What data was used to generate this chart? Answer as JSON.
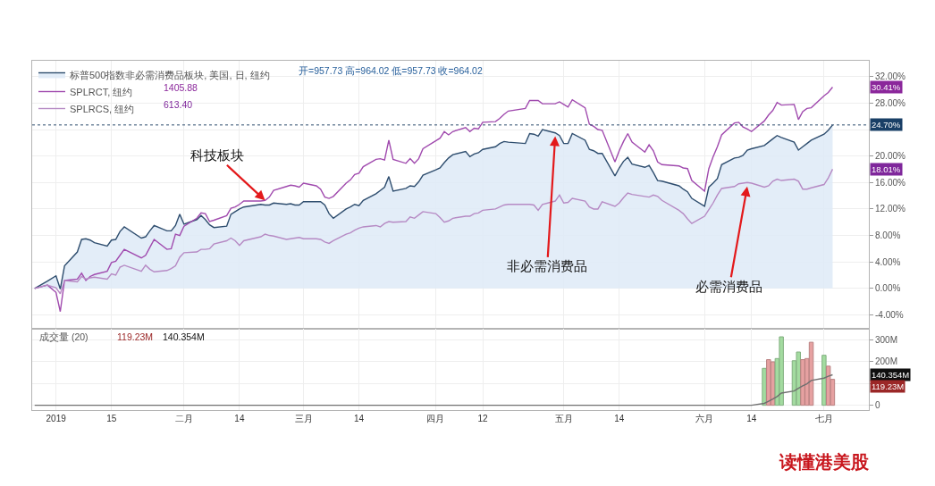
{
  "chart_data": [
    {
      "type": "line",
      "x": [
        "2018-12-28",
        "2018-12-31",
        "2019-01-02",
        "2019-01-03",
        "2019-01-04",
        "2019-01-07",
        "2019-01-08",
        "2019-01-09",
        "2019-01-10",
        "2019-01-11",
        "2019-01-14",
        "2019-01-15",
        "2019-01-16",
        "2019-01-17",
        "2019-01-18",
        "2019-01-22",
        "2019-01-23",
        "2019-01-24",
        "2019-01-25",
        "2019-01-28",
        "2019-01-29",
        "2019-01-30",
        "2019-01-31",
        "2019-02-01",
        "2019-02-04",
        "2019-02-05",
        "2019-02-06",
        "2019-02-07",
        "2019-02-08",
        "2019-02-11",
        "2019-02-12",
        "2019-02-13",
        "2019-02-14",
        "2019-02-15",
        "2019-02-19",
        "2019-02-20",
        "2019-02-21",
        "2019-02-22",
        "2019-02-25",
        "2019-02-26",
        "2019-02-27",
        "2019-02-28",
        "2019-03-01",
        "2019-03-04",
        "2019-03-05",
        "2019-03-06",
        "2019-03-07",
        "2019-03-08",
        "2019-03-11",
        "2019-03-12",
        "2019-03-13",
        "2019-03-14",
        "2019-03-15",
        "2019-03-18",
        "2019-03-19",
        "2019-03-20",
        "2019-03-21",
        "2019-03-22",
        "2019-03-25",
        "2019-03-26",
        "2019-03-27",
        "2019-03-28",
        "2019-03-29",
        "2019-04-01",
        "2019-04-02",
        "2019-04-03",
        "2019-04-04",
        "2019-04-05",
        "2019-04-08",
        "2019-04-09",
        "2019-04-10",
        "2019-04-11",
        "2019-04-12",
        "2019-04-15",
        "2019-04-16",
        "2019-04-17",
        "2019-04-18",
        "2019-04-22",
        "2019-04-23",
        "2019-04-24",
        "2019-04-25",
        "2019-04-26",
        "2019-04-29",
        "2019-04-30",
        "2019-05-01",
        "2019-05-02",
        "2019-05-03",
        "2019-05-06",
        "2019-05-07",
        "2019-05-08",
        "2019-05-09",
        "2019-05-10",
        "2019-05-13",
        "2019-05-14",
        "2019-05-15",
        "2019-05-16",
        "2019-05-17",
        "2019-05-20",
        "2019-05-21",
        "2019-05-22",
        "2019-05-23",
        "2019-05-24",
        "2019-05-28",
        "2019-05-29",
        "2019-05-30",
        "2019-05-31",
        "2019-06-03",
        "2019-06-04",
        "2019-06-05",
        "2019-06-06",
        "2019-06-07",
        "2019-06-10",
        "2019-06-11",
        "2019-06-12",
        "2019-06-13",
        "2019-06-14",
        "2019-06-17",
        "2019-06-18",
        "2019-06-19",
        "2019-06-20",
        "2019-06-21",
        "2019-06-24",
        "2019-06-25",
        "2019-06-26",
        "2019-06-27",
        "2019-06-28",
        "2019-07-01",
        "2019-07-02",
        "2019-07-03"
      ],
      "series": [
        {
          "name": "标普500指数非必需消费品板块, 美国, 日, 纽约",
          "type": "area",
          "color": "#2e4d6e",
          "values": [
            0,
            1.1,
            1.9,
            -0.1,
            3.4,
            5.5,
            7.4,
            7.5,
            7.3,
            6.9,
            6.4,
            7.3,
            7.4,
            8.6,
            9.3,
            7.6,
            7.8,
            8.7,
            9.5,
            8.7,
            8.7,
            9.5,
            11.2,
            9.7,
            10.4,
            11.0,
            10.4,
            9.6,
            9.2,
            9.4,
            11.2,
            11.6,
            12.0,
            12.3,
            12.7,
            12.6,
            12.6,
            12.9,
            12.7,
            12.8,
            12.6,
            12.6,
            13.1,
            13.1,
            13.1,
            12.6,
            11.3,
            10.6,
            12.0,
            12.3,
            12.7,
            12.5,
            13.3,
            14.3,
            14.8,
            15.3,
            16.9,
            14.7,
            15.1,
            15.5,
            15.4,
            16.1,
            17.1,
            17.9,
            18.2,
            19.0,
            19.7,
            20.2,
            20.7,
            19.9,
            20.3,
            20.5,
            21.0,
            21.4,
            21.9,
            22.2,
            22.1,
            21.9,
            23.4,
            23.3,
            23.0,
            24.0,
            23.5,
            23.1,
            21.9,
            21.9,
            23.4,
            22.4,
            21.0,
            20.8,
            20.4,
            20.4,
            17.0,
            18.2,
            19.2,
            19.8,
            18.8,
            18.3,
            18.6,
            17.5,
            16.3,
            16.2,
            15.5,
            15.0,
            14.6,
            13.6,
            12.4,
            15.3,
            15.9,
            16.6,
            18.7,
            19.7,
            19.8,
            20.1,
            20.9,
            21.1,
            21.6,
            22.1,
            22.6,
            23.1,
            22.8,
            22.1,
            20.9,
            21.4,
            21.9,
            22.4,
            23.3,
            23.9,
            24.7
          ]
        },
        {
          "name": "SPLRCT, 纽约",
          "color": "#a04aae",
          "values": [
            0,
            0.5,
            -0.6,
            -3.5,
            1.2,
            1.4,
            2.3,
            1.2,
            1.8,
            2.1,
            2.6,
            3.9,
            4.1,
            5.0,
            5.9,
            4.6,
            5.0,
            6.2,
            7.4,
            5.9,
            6.0,
            8.2,
            8.0,
            9.4,
            10.6,
            11.4,
            11.3,
            10.1,
            10.3,
            11.0,
            12.1,
            12.3,
            12.7,
            13.2,
            13.2,
            13.3,
            13.8,
            14.8,
            15.4,
            15.6,
            15.5,
            15.3,
            15.9,
            15.5,
            15.0,
            13.8,
            13.6,
            13.9,
            15.9,
            16.4,
            17.2,
            17.4,
            18.4,
            19.5,
            19.6,
            19.4,
            22.4,
            19.5,
            18.9,
            19.6,
            18.9,
            19.6,
            21.1,
            22.3,
            22.7,
            23.7,
            23.2,
            23.7,
            24.3,
            23.7,
            24.2,
            24.1,
            25.1,
            25.2,
            25.7,
            26.3,
            26.8,
            27.2,
            28.4,
            28.4,
            28.4,
            27.9,
            27.9,
            28.2,
            27.8,
            27.4,
            28.5,
            27.3,
            24.8,
            24.5,
            24.0,
            23.9,
            19.1,
            20.8,
            22.2,
            23.4,
            22.1,
            20.6,
            21.7,
            20.8,
            19.1,
            18.7,
            18.5,
            18.2,
            18.1,
            16.3,
            14.7,
            18.1,
            19.9,
            21.4,
            23.2,
            25.0,
            25.1,
            24.4,
            24.1,
            23.7,
            25.3,
            26.2,
            26.9,
            28.1,
            27.7,
            27.8,
            25.5,
            26.7,
            27.2,
            27.3,
            29.1,
            29.6,
            30.41
          ]
        },
        {
          "name": "SPLRCS, 纽约",
          "color": "#b68ac4",
          "values": [
            0,
            0.5,
            0.1,
            -0.8,
            1.2,
            1.0,
            1.8,
            1.4,
            1.6,
            1.7,
            1.4,
            2.2,
            2.0,
            3.2,
            3.5,
            2.6,
            3.5,
            2.9,
            2.5,
            2.7,
            3.0,
            3.4,
            4.7,
            5.4,
            5.5,
            5.9,
            5.9,
            6.0,
            6.7,
            7.2,
            7.6,
            7.2,
            6.5,
            7.2,
            7.8,
            8.2,
            8.0,
            7.9,
            7.4,
            7.5,
            7.6,
            7.7,
            7.5,
            7.5,
            7.4,
            7.0,
            6.8,
            7.2,
            8.2,
            8.4,
            8.8,
            9.1,
            9.3,
            9.5,
            9.3,
            9.8,
            10.1,
            10.0,
            10.1,
            10.8,
            10.6,
            11.1,
            11.6,
            11.3,
            10.7,
            10.0,
            10.2,
            10.6,
            10.9,
            10.9,
            11.3,
            11.4,
            11.8,
            12.0,
            12.3,
            12.6,
            12.7,
            12.7,
            12.7,
            12.6,
            11.8,
            12.7,
            13.2,
            14.1,
            12.9,
            13.0,
            13.6,
            13.2,
            12.3,
            12.0,
            12.0,
            13.1,
            12.4,
            12.9,
            13.7,
            14.4,
            14.2,
            13.9,
            13.8,
            14.1,
            13.9,
            13.3,
            11.8,
            11.3,
            10.5,
            9.8,
            10.9,
            11.9,
            12.9,
            14.1,
            15.1,
            15.4,
            15.8,
            15.9,
            16.0,
            15.9,
            15.3,
            15.5,
            16.2,
            16.5,
            16.3,
            16.5,
            16.2,
            15.0,
            15.0,
            15.2,
            15.7,
            16.7,
            18.01
          ]
        }
      ],
      "xlim": [
        "2018-12-27T10:00",
        "2019-07-11T12:00"
      ],
      "xticks": [
        {
          "value": "2019-01-02",
          "label": null
        },
        {
          "value": "2019-01-15",
          "label": null
        },
        {
          "value": "2019-02-01",
          "label": null
        },
        {
          "value": "2019-02-14",
          "label": null
        },
        {
          "value": "2019-03-01",
          "label": null
        },
        {
          "value": "2019-03-14",
          "label": null
        },
        {
          "value": "2019-04-01",
          "label": null
        },
        {
          "value": "2019-04-12",
          "label": null
        },
        {
          "value": "2019-05-01",
          "label": null
        },
        {
          "value": "2019-05-14",
          "label": null
        },
        {
          "value": "2019-06-03",
          "label": null
        },
        {
          "value": "2019-06-14",
          "label": null
        },
        {
          "value": "2019-07-01",
          "label": null
        }
      ],
      "ylim": [
        -6.1,
        34.4
      ],
      "yticks": [
        {
          "value": -4,
          "label": "-4.00%"
        },
        {
          "value": 0,
          "label": "0.00%"
        },
        {
          "value": 4,
          "label": "4.00%"
        },
        {
          "value": 8,
          "label": "8.00%"
        },
        {
          "value": 12,
          "label": "12.00%"
        },
        {
          "value": 16,
          "label": "16.00%"
        },
        {
          "value": 20,
          "label": "20.00%"
        },
        {
          "value": 24,
          "label": null
        },
        {
          "value": 28,
          "label": "28.00%"
        },
        {
          "value": 32,
          "label": "32.00%"
        }
      ],
      "grid": true,
      "legend": "top left",
      "tick_labels": "y",
      "ref_lines": [
        {
          "axis": "y",
          "value": 24.7,
          "label": "24.70%",
          "color": "#2e4d6e",
          "line_style": "dotted"
        }
      ],
      "annotations": [
        "开=957.73 高=964.02 低=957.73 收=964.02",
        "1405.88",
        "613.40",
        {
          "text": "科技板块",
          "x": "2019-02-20",
          "y": 13.3
        },
        {
          "text": "非必需消费品",
          "x": "2019-04-29",
          "y": 23.0
        },
        {
          "text": "必需消费品",
          "x": "2019-06-13",
          "y": 15.4
        },
        "30.41%",
        "18.01%",
        "读懂港美股"
      ]
    },
    {
      "type": "bar",
      "title": "成交量 (20)",
      "x": [
        "2019-06-17",
        "2019-06-18",
        "2019-06-19",
        "2019-06-20",
        "2019-06-21",
        "2019-06-24",
        "2019-06-25",
        "2019-06-26",
        "2019-06-27",
        "2019-06-28",
        "2019-07-01",
        "2019-07-02",
        "2019-07-03"
      ],
      "series": [
        {
          "values": [
            170,
            210,
            200,
            215,
            315,
            205,
            245,
            210,
            215,
            290,
            230,
            180,
            119.23
          ],
          "colors": [
            "#a3dba0",
            "#e6a1a1",
            "#e6a1a1",
            "#a3dba0",
            "#a3dba0",
            "#a3dba0",
            "#a3dba0",
            "#e6a1a1",
            "#e6a1a1",
            "#e6a1a1",
            "#a3dba0",
            "#e6a1a1",
            "#e6a1a1"
          ]
        },
        {
          "type": "line",
          "color": "#707070",
          "x": [
            "2018-12-28",
            "2019-06-14",
            "2019-06-17",
            "2019-06-18",
            "2019-06-19",
            "2019-06-20",
            "2019-06-21",
            "2019-06-24",
            "2019-06-25",
            "2019-06-26",
            "2019-06-27",
            "2019-06-28",
            "2019-07-01",
            "2019-07-02",
            "2019-07-03"
          ],
          "values": [
            0,
            0,
            9,
            19,
            29,
            40,
            56,
            66,
            78,
            89,
            99,
            114,
            125,
            134,
            140.354
          ]
        }
      ],
      "xlim": [
        "2018-12-27T10:00",
        "2019-07-11T12:00"
      ],
      "xticks": [
        {
          "value": "2019-01-02",
          "label": "2019"
        },
        {
          "value": "2019-01-15",
          "label": "15"
        },
        {
          "value": "2019-02-01",
          "label": "二月"
        },
        {
          "value": "2019-02-14",
          "label": "14"
        },
        {
          "value": "2019-03-01",
          "label": "三月"
        },
        {
          "value": "2019-03-14",
          "label": "14"
        },
        {
          "value": "2019-04-01",
          "label": "四月"
        },
        {
          "value": "2019-04-12",
          "label": "12"
        },
        {
          "value": "2019-05-01",
          "label": "五月"
        },
        {
          "value": "2019-05-14",
          "label": "14"
        },
        {
          "value": "2019-06-03",
          "label": "六月"
        },
        {
          "value": "2019-06-14",
          "label": "14"
        },
        {
          "value": "2019-07-01",
          "label": "七月"
        }
      ],
      "ylim": [
        -22,
        352
      ],
      "yticks": [
        0,
        {
          "value": 100,
          "label": null
        },
        {
          "value": 200,
          "label": "200M"
        },
        {
          "value": 300,
          "label": "300M"
        }
      ],
      "grid": true,
      "annotations": [
        "119.23M",
        "140.354M",
        "119.23M",
        "140.354M"
      ]
    }
  ]
}
